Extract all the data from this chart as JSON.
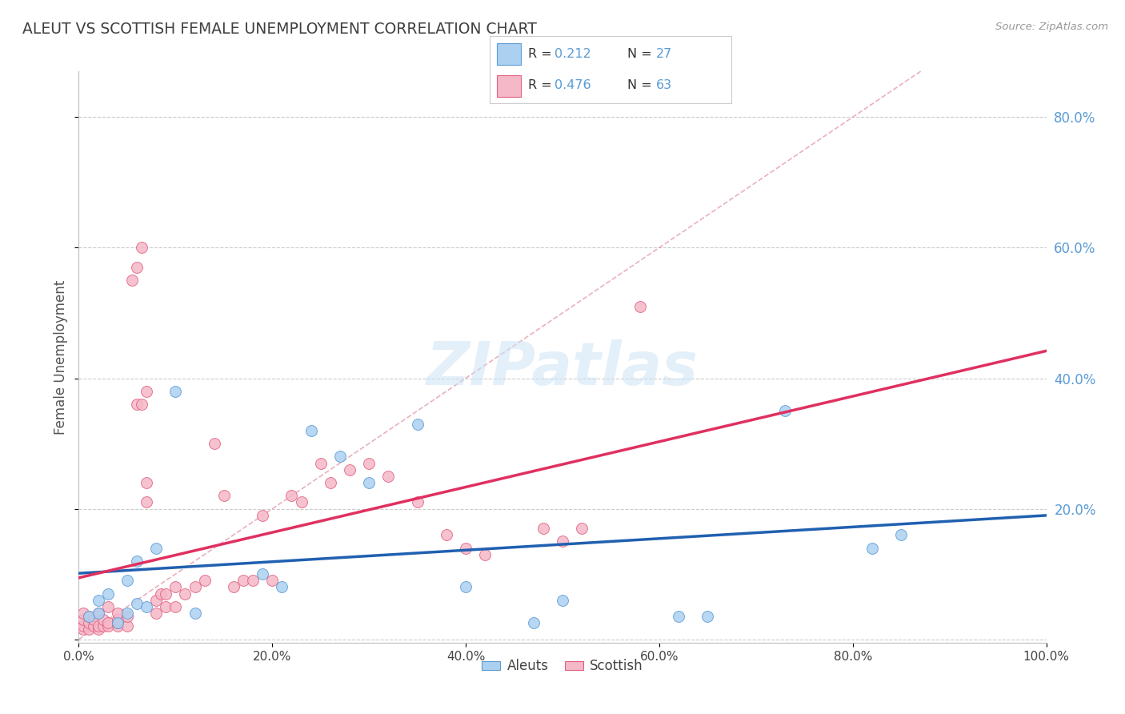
{
  "title": "ALEUT VS SCOTTISH FEMALE UNEMPLOYMENT CORRELATION CHART",
  "source": "Source: ZipAtlas.com",
  "ylabel": "Female Unemployment",
  "watermark": "ZIPatlas",
  "background_color": "#ffffff",
  "title_color": "#404040",
  "title_fontsize": 13.5,
  "grid_color": "#cccccc",
  "right_axis_color": "#5b9bd5",
  "aleut_color": "#acd0f0",
  "aleut_edge_color": "#5b9bd5",
  "scottish_color": "#f5b8c8",
  "scottish_edge_color": "#e06080",
  "aleut_R": 0.212,
  "aleut_N": 27,
  "scottish_R": 0.476,
  "scottish_N": 63,
  "aleut_trend_color": "#2060b0",
  "scottish_trend_color": "#e03060",
  "diag_color": "#e090a0",
  "xlim": [
    0,
    1.0
  ],
  "ylim": [
    -0.005,
    0.87
  ],
  "xtick_labels": [
    "0.0%",
    "20.0%",
    "40.0%",
    "60.0%",
    "80.0%",
    "100.0%"
  ],
  "xtick_vals": [
    0.0,
    0.2,
    0.4,
    0.6,
    0.8,
    1.0
  ],
  "ytick_labels": [
    "",
    "20.0%",
    "40.0%",
    "60.0%",
    "80.0%"
  ],
  "ytick_vals": [
    0.0,
    0.2,
    0.4,
    0.6,
    0.8
  ],
  "aleut_x": [
    0.01,
    0.02,
    0.02,
    0.03,
    0.04,
    0.05,
    0.05,
    0.06,
    0.06,
    0.07,
    0.08,
    0.1,
    0.12,
    0.19,
    0.21,
    0.24,
    0.27,
    0.3,
    0.35,
    0.4,
    0.47,
    0.5,
    0.62,
    0.65,
    0.73,
    0.82,
    0.85
  ],
  "aleut_y": [
    0.035,
    0.04,
    0.06,
    0.07,
    0.025,
    0.04,
    0.09,
    0.055,
    0.12,
    0.05,
    0.14,
    0.38,
    0.04,
    0.1,
    0.08,
    0.32,
    0.28,
    0.24,
    0.33,
    0.08,
    0.025,
    0.06,
    0.035,
    0.035,
    0.35,
    0.14,
    0.16
  ],
  "scottish_x": [
    0.005,
    0.005,
    0.005,
    0.005,
    0.01,
    0.01,
    0.01,
    0.015,
    0.015,
    0.02,
    0.02,
    0.02,
    0.025,
    0.025,
    0.03,
    0.03,
    0.03,
    0.04,
    0.04,
    0.04,
    0.04,
    0.05,
    0.05,
    0.055,
    0.06,
    0.06,
    0.065,
    0.065,
    0.07,
    0.07,
    0.07,
    0.08,
    0.08,
    0.085,
    0.09,
    0.09,
    0.1,
    0.1,
    0.11,
    0.12,
    0.13,
    0.14,
    0.15,
    0.16,
    0.17,
    0.18,
    0.19,
    0.2,
    0.22,
    0.23,
    0.25,
    0.26,
    0.28,
    0.3,
    0.32,
    0.35,
    0.38,
    0.4,
    0.42,
    0.48,
    0.5,
    0.52,
    0.58
  ],
  "scottish_y": [
    0.015,
    0.02,
    0.03,
    0.04,
    0.015,
    0.025,
    0.035,
    0.02,
    0.03,
    0.015,
    0.02,
    0.04,
    0.02,
    0.03,
    0.02,
    0.025,
    0.05,
    0.02,
    0.025,
    0.03,
    0.04,
    0.02,
    0.035,
    0.55,
    0.57,
    0.36,
    0.36,
    0.6,
    0.21,
    0.24,
    0.38,
    0.04,
    0.06,
    0.07,
    0.05,
    0.07,
    0.05,
    0.08,
    0.07,
    0.08,
    0.09,
    0.3,
    0.22,
    0.08,
    0.09,
    0.09,
    0.19,
    0.09,
    0.22,
    0.21,
    0.27,
    0.24,
    0.26,
    0.27,
    0.25,
    0.21,
    0.16,
    0.14,
    0.13,
    0.17,
    0.15,
    0.17,
    0.51
  ]
}
